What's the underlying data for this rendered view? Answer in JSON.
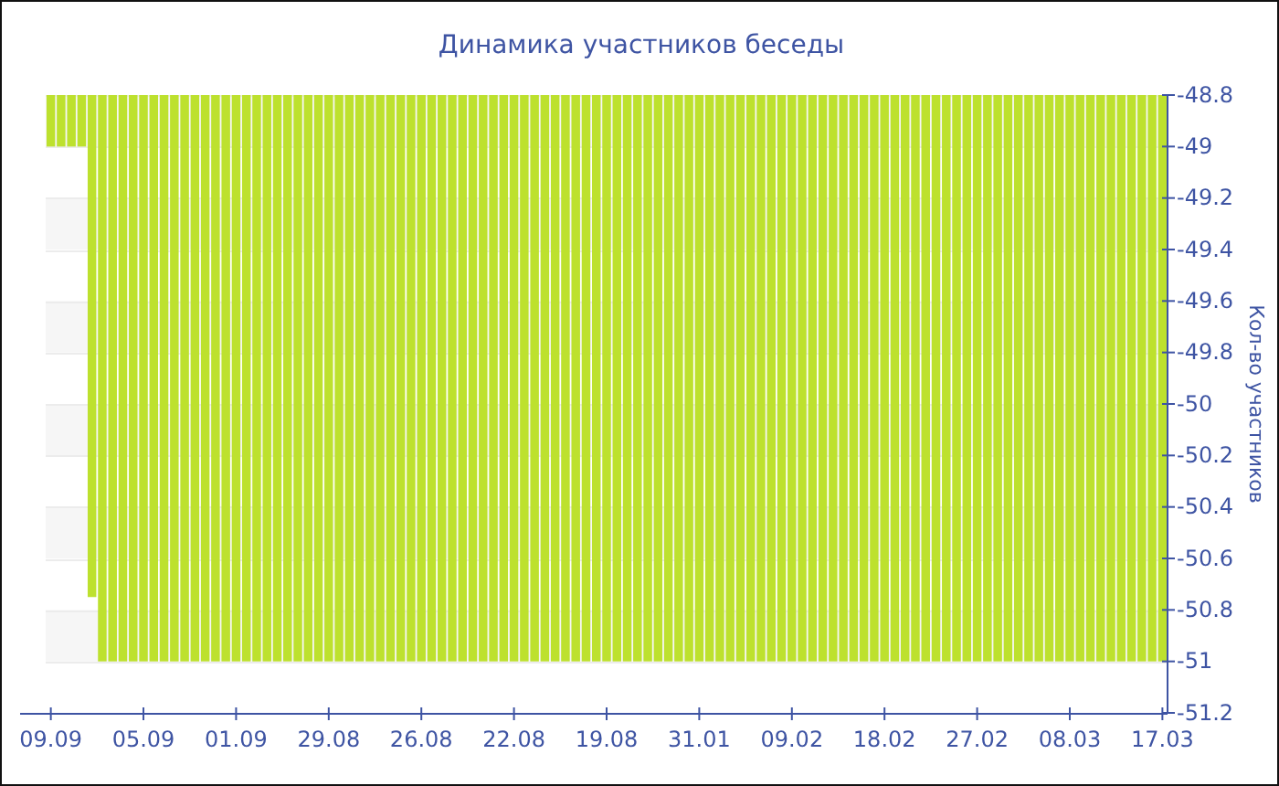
{
  "chart_data": {
    "type": "bar",
    "title": "Динамика участников беседы",
    "ylabel": "Кол-во участников",
    "categories": [
      "09.09",
      null,
      null,
      null,
      null,
      null,
      null,
      null,
      null,
      "05.09",
      null,
      null,
      null,
      null,
      null,
      null,
      null,
      null,
      "01.09",
      null,
      null,
      null,
      null,
      null,
      null,
      null,
      null,
      "29.08",
      null,
      null,
      null,
      null,
      null,
      null,
      null,
      null,
      "26.08",
      null,
      null,
      null,
      null,
      null,
      null,
      null,
      null,
      "22.08",
      null,
      null,
      null,
      null,
      null,
      null,
      null,
      null,
      "19.08",
      null,
      null,
      null,
      null,
      null,
      null,
      null,
      null,
      "31.01",
      null,
      null,
      null,
      null,
      null,
      null,
      null,
      null,
      "09.02",
      null,
      null,
      null,
      null,
      null,
      null,
      null,
      null,
      "18.02",
      null,
      null,
      null,
      null,
      null,
      null,
      null,
      null,
      "27.02",
      null,
      null,
      null,
      null,
      null,
      null,
      null,
      null,
      "08.03",
      null,
      null,
      null,
      null,
      null,
      null,
      null,
      null,
      "17.03"
    ],
    "values": [
      -49,
      -49,
      -49,
      -49,
      -50.75,
      -51,
      -51,
      -51,
      -51,
      -51,
      -51,
      -51,
      -51,
      -51,
      -51,
      -51,
      -51,
      -51,
      -51,
      -51,
      -51,
      -51,
      -51,
      -51,
      -51,
      -51,
      -51,
      -51,
      -51,
      -51,
      -51,
      -51,
      -51,
      -51,
      -51,
      -51,
      -51,
      -51,
      -51,
      -51,
      -51,
      -51,
      -51,
      -51,
      -51,
      -51,
      -51,
      -51,
      -51,
      -51,
      -51,
      -51,
      -51,
      -51,
      -51,
      -51,
      -51,
      -51,
      -51,
      -51,
      -51,
      -51,
      -51,
      -51,
      -51,
      -51,
      -51,
      -51,
      -51,
      -51,
      -51,
      -51,
      -51,
      -51,
      -51,
      -51,
      -51,
      -51,
      -51,
      -51,
      -51,
      -51,
      -51,
      -51,
      -51,
      -51,
      -51,
      -51,
      -51,
      -51,
      -51,
      -51,
      -51,
      -51,
      -51,
      -51,
      -51,
      -51,
      -51,
      -51,
      -51,
      -51,
      -51,
      -51,
      -51,
      -51,
      -51,
      -51,
      -51
    ],
    "color": "#bde12e",
    "ylim": [
      -51.2,
      -48.8
    ],
    "yticks": [
      -48.8,
      -49,
      -49.2,
      -49.4,
      -49.6,
      -49.8,
      -50,
      -50.2,
      -50.4,
      -50.6,
      -50.8,
      -51,
      -51.2
    ],
    "grid": "y"
  }
}
